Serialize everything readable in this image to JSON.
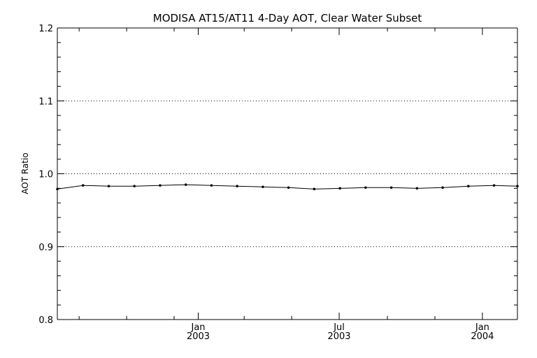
{
  "chart_data": {
    "type": "line",
    "title": "MODISA AT15/AT11 4-Day AOT, Clear Water Subset",
    "xlabel": "",
    "ylabel": "AOT Ratio",
    "ylim": [
      0.8,
      1.2
    ],
    "xlim": [
      "2002-07-04",
      "2004-02-15"
    ],
    "y_ticks": [
      {
        "value": 0.8,
        "label": "0.8"
      },
      {
        "value": 0.9,
        "label": "0.9"
      },
      {
        "value": 1.0,
        "label": "1.0"
      },
      {
        "value": 1.1,
        "label": "1.1"
      },
      {
        "value": 1.2,
        "label": "1.2"
      }
    ],
    "x_major_ticks": [
      {
        "date": "2003-01-01",
        "label_month": "Jan",
        "label_year": "2003"
      },
      {
        "date": "2003-07-01",
        "label_month": "Jul",
        "label_year": "2003"
      },
      {
        "date": "2004-01-01",
        "label_month": "Jan",
        "label_year": "2004"
      }
    ],
    "x_minor_ticks": [
      "2002-08-01",
      "2002-10-01",
      "2002-12-01",
      "2003-03-01",
      "2003-05-01",
      "2003-09-01",
      "2003-11-01"
    ],
    "grid_y": [
      0.9,
      1.0,
      1.1
    ],
    "series": [
      {
        "x": [
          "2002-07-04",
          "2002-08-06",
          "2002-09-08",
          "2002-10-11",
          "2002-11-13",
          "2002-12-16",
          "2003-01-18",
          "2003-02-20",
          "2003-03-25",
          "2003-04-27",
          "2003-05-30",
          "2003-07-02",
          "2003-08-04",
          "2003-09-06",
          "2003-10-09",
          "2003-11-11",
          "2003-12-14",
          "2004-01-16",
          "2004-02-15"
        ],
        "values": [
          0.979,
          0.984,
          0.983,
          0.983,
          0.984,
          0.985,
          0.984,
          0.983,
          0.982,
          0.981,
          0.979,
          0.98,
          0.981,
          0.981,
          0.98,
          0.981,
          0.983,
          0.984,
          0.983
        ]
      }
    ]
  }
}
